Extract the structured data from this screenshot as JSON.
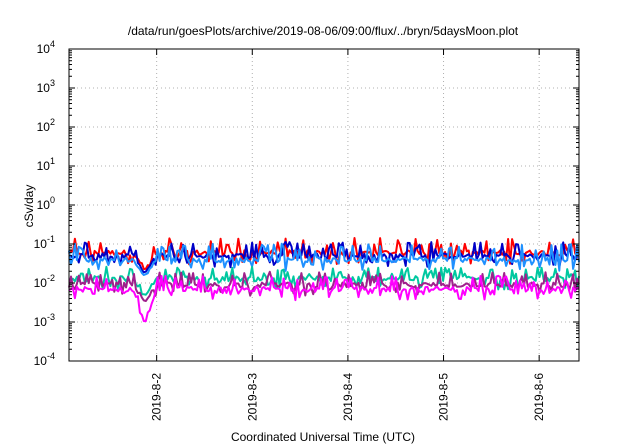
{
  "chart_data": {
    "type": "line",
    "title": "/data/run/goesPlots/archive/2019-08-06/09:00/flux/../bryn/5daysMoon.plot",
    "xlabel": "Coordinated Universal Time (UTC)",
    "ylabel": "cSv/day",
    "y_scale": "log",
    "ylim": [
      0.0001,
      10000
    ],
    "y_ticks": [
      {
        "base": "10",
        "exp": "-4"
      },
      {
        "base": "10",
        "exp": "-3"
      },
      {
        "base": "10",
        "exp": "-2"
      },
      {
        "base": "10",
        "exp": "-1"
      },
      {
        "base": "10",
        "exp": "0"
      },
      {
        "base": "10",
        "exp": "1"
      },
      {
        "base": "10",
        "exp": "2"
      },
      {
        "base": "10",
        "exp": "3"
      },
      {
        "base": "10",
        "exp": "4"
      }
    ],
    "xlim": [
      "2019-08-01 02:00",
      "2019-08-06 10:00"
    ],
    "x_ticks": [
      {
        "label": "2019-8-2",
        "day": 2
      },
      {
        "label": "2019-8-3",
        "day": 3
      },
      {
        "label": "2019-8-4",
        "day": 4
      },
      {
        "label": "2019-8-5",
        "day": 5
      },
      {
        "label": "2019-8-6",
        "day": 6
      }
    ],
    "grid": true,
    "legend": "none",
    "series": [
      {
        "color": "#ff0000",
        "base": 0.06,
        "spike": 0.11
      },
      {
        "color": "#0000c8",
        "base": 0.05,
        "spike": 0.09
      },
      {
        "color": "#1e90ff",
        "base": 0.04,
        "spike": 0.08
      },
      {
        "color": "#00c8a0",
        "base": 0.013,
        "spike": 0.02
      },
      {
        "color": "#a0208c",
        "base": 0.009,
        "spike": 0.015
      },
      {
        "color": "#ff00ff",
        "base": 0.007,
        "spike": 0.012
      }
    ],
    "notable_minimum": {
      "date": "2019-08-01 21:00",
      "value": 0.0009
    }
  }
}
